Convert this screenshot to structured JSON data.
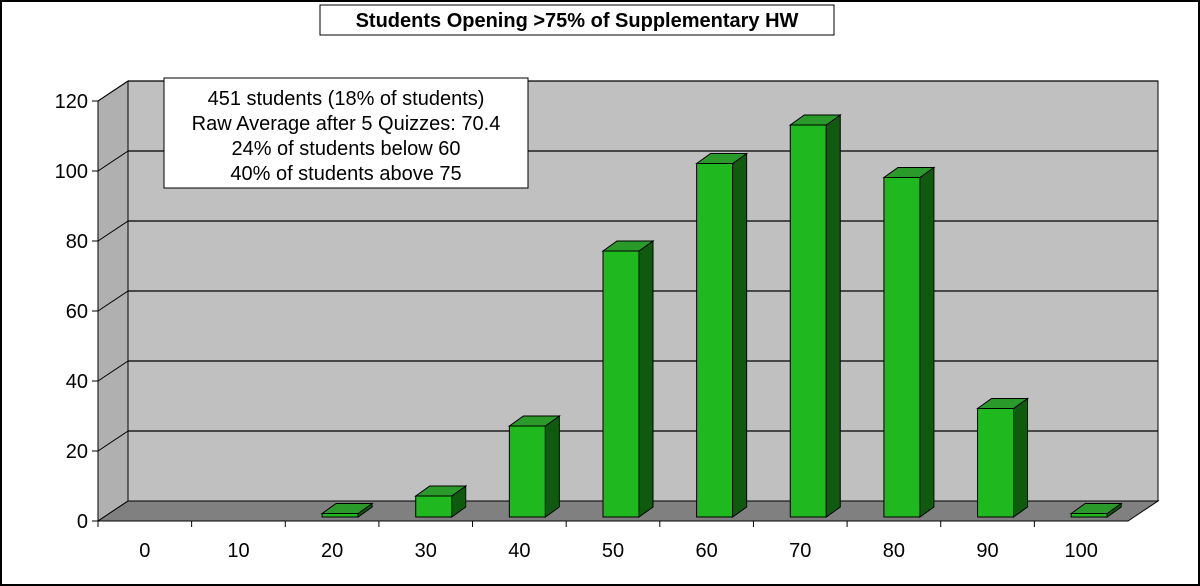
{
  "chart_data": {
    "type": "bar",
    "title": "Students Opening >75% of Supplementary HW",
    "xlabel": "",
    "ylabel": "",
    "categories": [
      "0",
      "10",
      "20",
      "30",
      "40",
      "50",
      "60",
      "70",
      "80",
      "90",
      "100"
    ],
    "values": [
      0,
      0,
      1,
      6,
      26,
      76,
      101,
      112,
      97,
      31,
      1
    ],
    "ylim": [
      0,
      120
    ],
    "yticks": [
      "0",
      "20",
      "40",
      "60",
      "80",
      "100",
      "120"
    ],
    "grid": true,
    "annotation": [
      "451 students (18% of students)",
      "Raw Average after 5 Quizzes: 70.4",
      "24% of students below 60",
      "40% of students above 75"
    ],
    "colors": {
      "bar_front": "#1fb81f",
      "bar_side": "#0f5a0f",
      "bar_top": "#2a9a2a",
      "wall": "#c0c0c0",
      "side_wall": "#b0b0b0",
      "floor": "#808080"
    }
  }
}
